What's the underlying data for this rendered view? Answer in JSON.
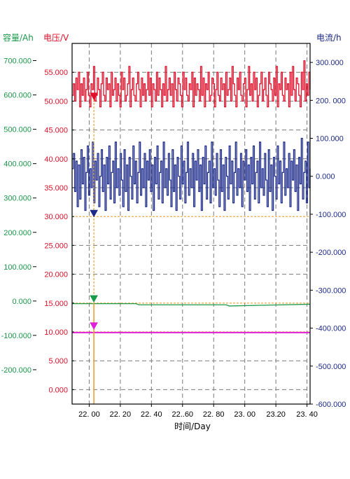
{
  "chart_data": {
    "type": "line",
    "title": "",
    "xlabel": "时间/Day",
    "x_range": [
      21.89,
      23.42
    ],
    "x_ticks": [
      22.0,
      22.2,
      22.4,
      22.6,
      22.8,
      23.0,
      23.2,
      23.4
    ],
    "x_tick_labels": [
      "22. 00",
      "22. 20",
      "22. 40",
      "22..60",
      "22. 80",
      "23. 00",
      "23.20",
      "23. 40"
    ],
    "axes": {
      "capacity": {
        "title": "容量/Ah",
        "color": "#1a9a4a",
        "range": [
          -300,
          750
        ],
        "ticks": [
          700,
          600,
          500,
          400,
          300,
          200,
          100,
          0,
          -100,
          -200
        ],
        "tick_labels": [
          "700.000",
          "600.000",
          "500.000",
          "400.000",
          "300.000",
          "200.000",
          "100.000",
          "0.000",
          "-100.000",
          "-200.000"
        ]
      },
      "voltage": {
        "title": "电压/V",
        "color": "#e0102a",
        "range": [
          -2.5,
          60
        ],
        "ticks": [
          55,
          50,
          45,
          40,
          35,
          30,
          25,
          20,
          15,
          10,
          5,
          0
        ],
        "tick_labels": [
          "55.000",
          "50.000",
          "45.000",
          "40.000",
          "35.000",
          "30.000",
          "25.000",
          "20.000",
          "15.000",
          "10.000",
          "5.000",
          "0.000"
        ]
      },
      "current": {
        "title": "电流/h",
        "color": "#1c2a8a",
        "range": [
          -600,
          350
        ],
        "ticks": [
          300,
          200,
          100,
          0,
          -100,
          -200,
          -300,
          -400,
          -500,
          -600
        ],
        "tick_labels": [
          "300.000",
          "200. 000",
          "100.000",
          "0.000",
          "-100.000",
          "-200.000",
          "-300.000",
          "-400.000",
          "-500.000",
          "-600.000"
        ]
      }
    },
    "series": [
      {
        "axis": "voltage",
        "color": "#e0102a",
        "x_start": 21.89,
        "x_end": 23.42,
        "step": true,
        "values": [
          51,
          53,
          50,
          54,
          52,
          55,
          49,
          53,
          51,
          54,
          50,
          52,
          55,
          51,
          49,
          53,
          52,
          56,
          50,
          51,
          54,
          52,
          49,
          53,
          55,
          51,
          50,
          54,
          52,
          53,
          49,
          55,
          51,
          52,
          54,
          50,
          53,
          51,
          49,
          55,
          52,
          54,
          50,
          51,
          53,
          56,
          49,
          52,
          54,
          51,
          50,
          53,
          55,
          52,
          49,
          54,
          51,
          53,
          50,
          52,
          55,
          51,
          54,
          49,
          53,
          52,
          50,
          55,
          51,
          54,
          52,
          49,
          53,
          51,
          56,
          50,
          52,
          54,
          51,
          53,
          49,
          55,
          52,
          50,
          54,
          53,
          51,
          49,
          55,
          52,
          54,
          51,
          50,
          53,
          52,
          55,
          49,
          54,
          51,
          53,
          52,
          50,
          56,
          51,
          54,
          49,
          53,
          52,
          55,
          50,
          51,
          54,
          53,
          49,
          52,
          55,
          51,
          50,
          54,
          52,
          53,
          49,
          55,
          51,
          52,
          54,
          50,
          56,
          53,
          51,
          49,
          54,
          52,
          55,
          51,
          50,
          53,
          54,
          49,
          52,
          56,
          51,
          53,
          50,
          55,
          52,
          54,
          49,
          51,
          53,
          55,
          50,
          52,
          54,
          51,
          49,
          55,
          53,
          52,
          50,
          54,
          51,
          56,
          49,
          53,
          52,
          55,
          51,
          50,
          54,
          52,
          53,
          49,
          55,
          51,
          56,
          52,
          50,
          54,
          53,
          51,
          49,
          55,
          52,
          57,
          50,
          53,
          51,
          55,
          52
        ]
      },
      {
        "axis": "current",
        "color": "#1c2a8a",
        "x_start": 21.89,
        "x_end": 23.42,
        "step": true,
        "values": [
          20,
          60,
          -40,
          40,
          -80,
          30,
          -60,
          70,
          -20,
          50,
          -90,
          10,
          80,
          -50,
          20,
          -30,
          90,
          -70,
          40,
          -10,
          60,
          -80,
          0,
          70,
          -40,
          30,
          -90,
          50,
          -20,
          80,
          -60,
          10,
          40,
          -70,
          90,
          -30,
          20,
          -50,
          60,
          -10,
          -80,
          70,
          -40,
          30,
          -90,
          50,
          0,
          -60,
          80,
          -20,
          40,
          -70,
          10,
          90,
          -50,
          20,
          -30,
          60,
          -80,
          40,
          -10,
          70,
          -40,
          30,
          -90,
          50,
          -20,
          80,
          -60,
          10,
          40,
          -70,
          90,
          -30,
          20,
          -50,
          60,
          -10,
          -80,
          70,
          -40,
          30,
          -90,
          50,
          0,
          -60,
          80,
          -20,
          40,
          -70,
          10,
          90,
          -50,
          20,
          -30,
          60,
          -80,
          40,
          -10,
          70,
          -40,
          30,
          -90,
          50,
          -20,
          80,
          -60,
          10,
          40,
          -70,
          90,
          -30,
          20,
          -50,
          60,
          -10,
          -80,
          70,
          -40,
          30,
          -90,
          50,
          0,
          -60,
          80,
          -20,
          40,
          -70,
          10,
          90,
          -50,
          20,
          -30,
          60,
          -80,
          40,
          -10,
          70,
          -40,
          30,
          -90,
          50,
          -20,
          80,
          -60,
          10,
          40,
          -70,
          90,
          -30,
          20,
          -50,
          60,
          -10,
          -80,
          70,
          -40,
          30,
          -90,
          50,
          0,
          -60,
          80,
          -20,
          40,
          -70,
          10,
          90,
          -50,
          20,
          -30,
          60,
          -80,
          40,
          -10,
          70,
          -40,
          30,
          -90,
          50,
          -20,
          100,
          -60,
          10,
          40,
          -70,
          90,
          -30,
          20
        ]
      },
      {
        "axis": "voltage",
        "color": "#1a9a4a",
        "step": false,
        "x": [
          21.89,
          22.3,
          22.32,
          22.88,
          22.9,
          23.42
        ],
        "values": [
          14.9,
          14.9,
          14.7,
          14.7,
          14.5,
          14.8
        ]
      },
      {
        "axis": "voltage",
        "color": "#e020d8",
        "step": false,
        "x": [
          21.89,
          23.42
        ],
        "values": [
          9.9,
          9.9
        ]
      }
    ],
    "cursor": {
      "x": 22.03,
      "color": "#f0a030",
      "markers": [
        {
          "series": 0,
          "value": 50.3,
          "color": "#e0102a",
          "shape": "down"
        },
        {
          "series": 1,
          "value": 30.0,
          "color": "#1c2a8a",
          "shape": "down"
        },
        {
          "series": 2,
          "value": 15.2,
          "color": "#1a9a4a",
          "shape": "down"
        },
        {
          "series": 3,
          "value": 10.5,
          "color": "#e020d8",
          "shape": "down"
        }
      ]
    },
    "grid": true
  }
}
